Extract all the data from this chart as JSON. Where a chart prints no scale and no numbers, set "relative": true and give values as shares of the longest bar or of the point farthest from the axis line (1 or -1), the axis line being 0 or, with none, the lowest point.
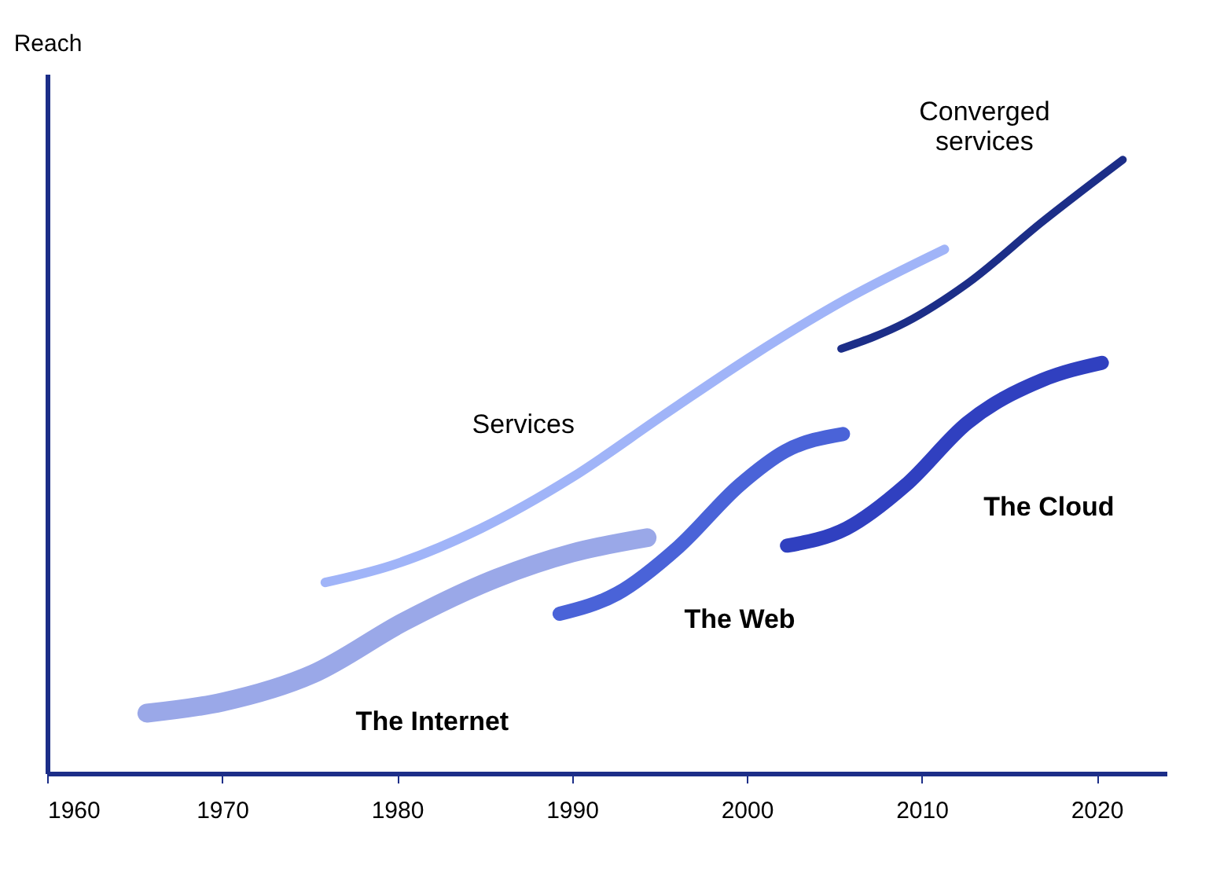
{
  "chart_data": {
    "type": "line",
    "relative": true,
    "ylabel": "Reach",
    "xlim": [
      1960,
      2024
    ],
    "xticks": [
      1960,
      1970,
      1980,
      1990,
      2000,
      2010,
      2020
    ],
    "grid": false,
    "legend": false,
    "marker": "none",
    "line_style": "solid",
    "series": [
      {
        "name": "The Internet",
        "color": "#9aa8e8",
        "x": [
          1965.7,
          1970,
          1975.2,
          1980.4,
          1985.7,
          1990,
          1994.3
        ],
        "values": [
          0.098,
          0.116,
          0.162,
          0.247,
          0.318,
          0.359,
          0.384
        ]
      },
      {
        "name": "Services",
        "color": "#a0b4f8",
        "x": [
          1975.9,
          1979.6,
          1984.8,
          1990,
          1995.2,
          2000.4,
          2005.7,
          2011.3
        ],
        "values": [
          0.311,
          0.338,
          0.399,
          0.482,
          0.583,
          0.682,
          0.773,
          0.854
        ]
      },
      {
        "name": "The Web",
        "color": "#4a63d8",
        "x": [
          1989.3,
          1992.6,
          1996.1,
          1999.6,
          2002.2,
          2005.5
        ],
        "values": [
          0.26,
          0.293,
          0.369,
          0.47,
          0.525,
          0.553
        ]
      },
      {
        "name": "The Cloud",
        "color": "#3040c0",
        "x": [
          2002.3,
          2005.7,
          2009.1,
          2012.6,
          2016.9,
          2020.3
        ],
        "values": [
          0.371,
          0.399,
          0.47,
          0.571,
          0.641,
          0.669
        ]
      },
      {
        "name": "Converged\nservices",
        "color": "#1c2e88",
        "x": [
          2005.4,
          2009.1,
          2012.6,
          2016.9,
          2021.5
        ],
        "values": [
          0.692,
          0.735,
          0.798,
          0.899,
          1.0
        ]
      }
    ]
  }
}
